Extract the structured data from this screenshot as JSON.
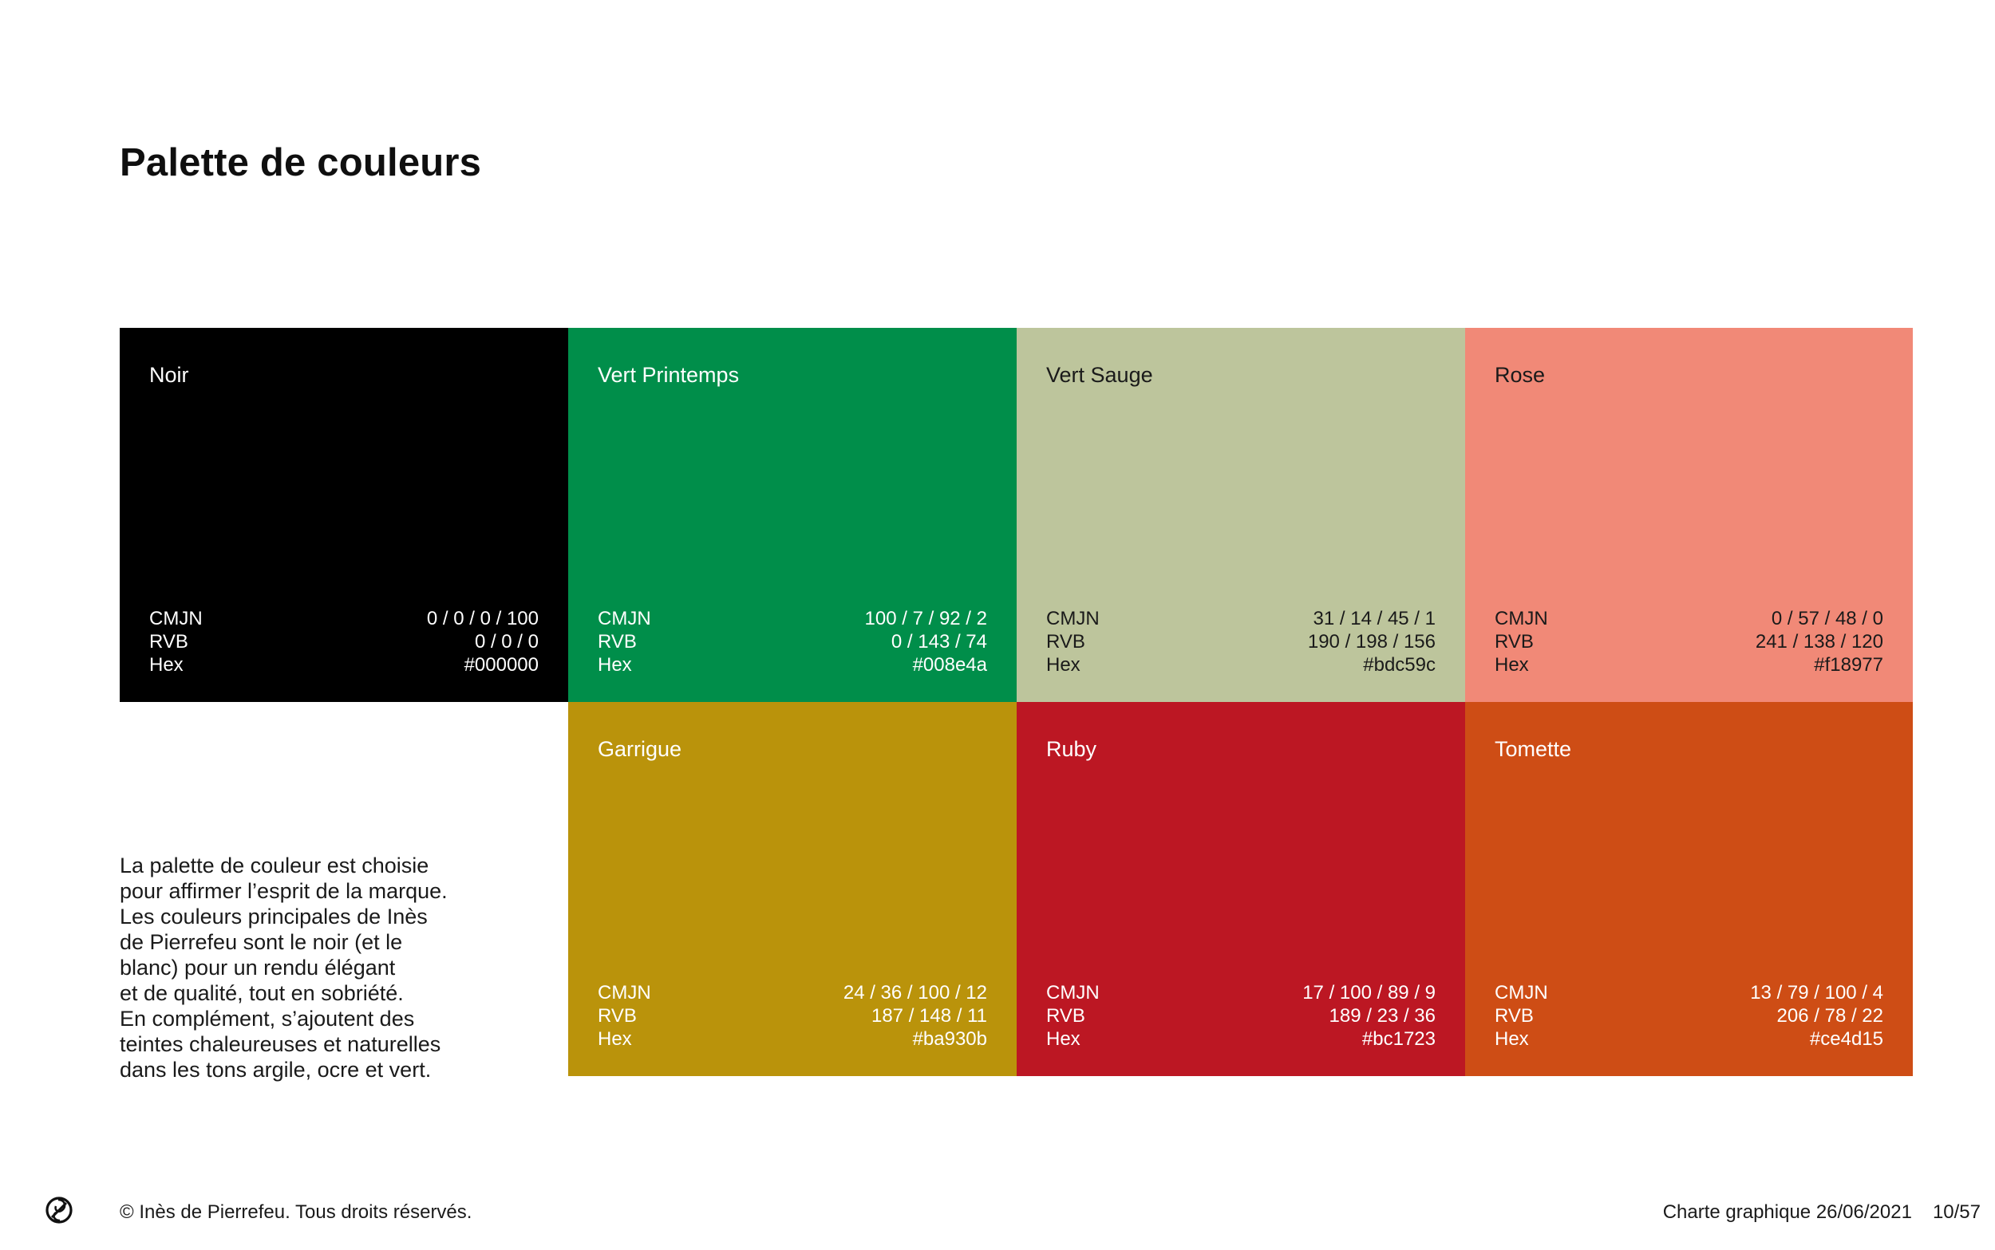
{
  "title": "Palette de couleurs",
  "labels": {
    "cmjn": "CMJN",
    "rvb": "RVB",
    "hex": "Hex"
  },
  "swatches": [
    {
      "name": "Noir",
      "cmjn": "0 / 0 / 0 / 100",
      "rvb": "0 / 0 / 0",
      "hex": "#000000",
      "color": "#000000",
      "text_color": "#ffffff"
    },
    {
      "name": "Vert Printemps",
      "cmjn": "100 / 7 / 92 / 2",
      "rvb": "0 / 143 / 74",
      "hex": "#008e4a",
      "color": "#008e4a",
      "text_color": "#ffffff"
    },
    {
      "name": "Vert Sauge",
      "cmjn": "31 / 14 / 45 / 1",
      "rvb": "190 / 198 / 156",
      "hex": "#bdc59c",
      "color": "#bdc59c",
      "text_color": "#1a1a1a"
    },
    {
      "name": "Rose",
      "cmjn": "0 / 57 / 48 / 0",
      "rvb": "241 / 138 / 120",
      "hex": "#f18977",
      "color": "#f18977",
      "text_color": "#1a1a1a"
    },
    {
      "name": "Garrigue",
      "cmjn": "24 / 36 / 100 / 12",
      "rvb": "187 / 148 / 11",
      "hex": "#ba930b",
      "color": "#ba930b",
      "text_color": "#ffffff"
    },
    {
      "name": "Ruby",
      "cmjn": "17 / 100 / 89 / 9",
      "rvb": "189 / 23 / 36",
      "hex": "#bc1723",
      "color": "#bc1723",
      "text_color": "#ffffff"
    },
    {
      "name": "Tomette",
      "cmjn": "13 / 79 / 100 / 4",
      "rvb": "206 / 78 / 22",
      "hex": "#ce4d15",
      "color": "#ce4d15",
      "text_color": "#ffffff"
    }
  ],
  "description_lines": [
    "La palette de couleur est choisie",
    "pour affirmer l’esprit de la marque.",
    "Les couleurs principales de Inès",
    "de Pierrefeu sont le noir (et le",
    "blanc) pour un rendu élégant",
    "et de qualité, tout en sobriété.",
    "En complément, s’ajoutent des",
    "teintes chaleureuses et naturelles",
    "dans les tons argile, ocre et vert."
  ],
  "footer": {
    "copyright": "© Inès de Pierrefeu. Tous droits réservés.",
    "document": "Charte graphique 26/06/2021",
    "page": "10/57",
    "logo_icon": "ip-monogram-icon"
  }
}
